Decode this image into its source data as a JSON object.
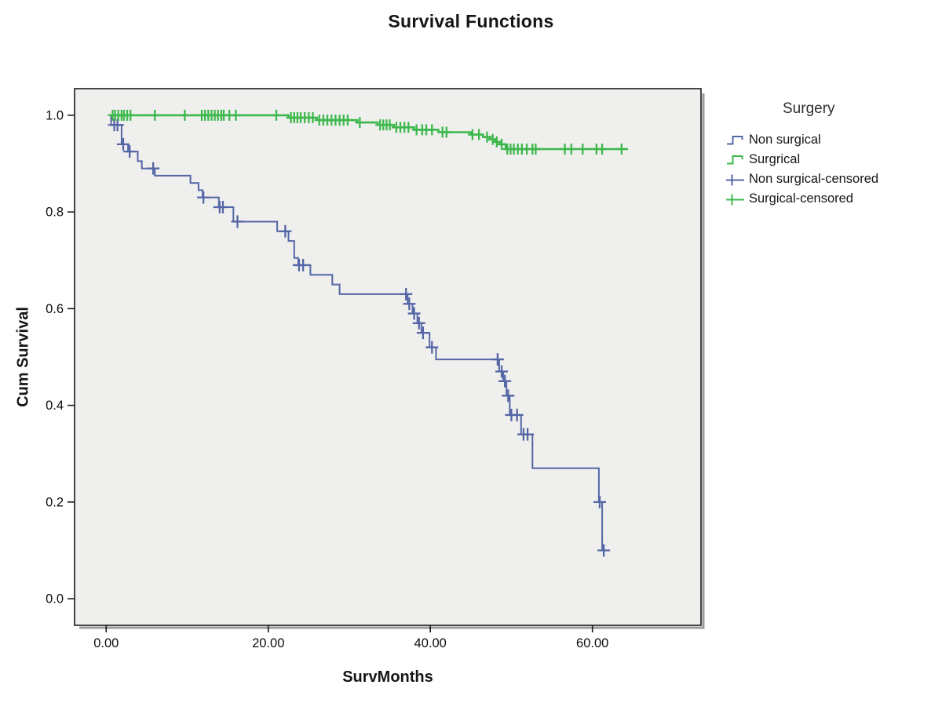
{
  "chart_data": {
    "type": "line",
    "subtype": "kaplan-meier-step",
    "title": "Survival Functions",
    "xlabel": "SurvMonths",
    "ylabel": "Cum Survival",
    "xlim": [
      -3.9,
      73.4
    ],
    "ylim": [
      -0.055,
      1.055
    ],
    "grid": false,
    "legend_position": "right",
    "plot_bg": "#EFEFED",
    "border_color": "#1a1a1a",
    "x_ticks": [
      {
        "v": 0,
        "label": "0.00"
      },
      {
        "v": 20,
        "label": "20.00"
      },
      {
        "v": 40,
        "label": "40.00"
      },
      {
        "v": 60,
        "label": "60.00"
      }
    ],
    "y_ticks": [
      {
        "v": 0.0,
        "label": "0.0"
      },
      {
        "v": 0.2,
        "label": "0.2"
      },
      {
        "v": 0.4,
        "label": "0.4"
      },
      {
        "v": 0.6,
        "label": "0.6"
      },
      {
        "v": 0.8,
        "label": "0.8"
      },
      {
        "v": 1.0,
        "label": "1.0"
      }
    ],
    "series": [
      {
        "name": "Non surgical",
        "color": "#5566A6",
        "line_width": 2,
        "end_time": 61.6,
        "steps": [
          [
            0.3,
            1.0
          ],
          [
            0.6,
            0.98
          ],
          [
            1.9,
            0.94
          ],
          [
            2.7,
            0.925
          ],
          [
            3.9,
            0.905
          ],
          [
            4.4,
            0.89
          ],
          [
            6.0,
            0.875
          ],
          [
            10.4,
            0.86
          ],
          [
            11.4,
            0.845
          ],
          [
            11.9,
            0.83
          ],
          [
            13.9,
            0.81
          ],
          [
            15.7,
            0.78
          ],
          [
            21.1,
            0.76
          ],
          [
            22.5,
            0.74
          ],
          [
            23.2,
            0.705
          ],
          [
            23.7,
            0.69
          ],
          [
            25.2,
            0.67
          ],
          [
            27.9,
            0.65
          ],
          [
            28.8,
            0.63
          ],
          [
            37.2,
            0.61
          ],
          [
            37.8,
            0.59
          ],
          [
            38.4,
            0.57
          ],
          [
            38.9,
            0.55
          ],
          [
            39.9,
            0.52
          ],
          [
            40.7,
            0.495
          ],
          [
            48.5,
            0.47
          ],
          [
            49.0,
            0.45
          ],
          [
            49.4,
            0.42
          ],
          [
            49.8,
            0.38
          ],
          [
            51.2,
            0.34
          ],
          [
            52.6,
            0.27
          ],
          [
            60.8,
            0.2
          ],
          [
            61.2,
            0.1
          ]
        ],
        "censor_times": [
          1.0,
          1.4,
          2.1,
          2.9,
          5.8,
          12.0,
          14.0,
          14.4,
          16.2,
          22.1,
          23.8,
          24.3,
          37.0,
          37.4,
          38.0,
          38.6,
          39.1,
          40.2,
          48.3,
          48.8,
          49.2,
          49.6,
          50.0,
          50.7,
          51.5,
          52.0,
          60.9,
          61.4
        ]
      },
      {
        "name": "Surgical",
        "color": "#3DB84C",
        "line_width": 2.6,
        "end_time": 64.4,
        "steps": [
          [
            0.5,
            1.0
          ],
          [
            22.5,
            0.995
          ],
          [
            26.0,
            0.99
          ],
          [
            31.0,
            0.985
          ],
          [
            33.5,
            0.98
          ],
          [
            35.5,
            0.975
          ],
          [
            38.0,
            0.97
          ],
          [
            41.0,
            0.965
          ],
          [
            45.0,
            0.96
          ],
          [
            46.5,
            0.955
          ],
          [
            47.3,
            0.95
          ],
          [
            48.0,
            0.945
          ],
          [
            48.6,
            0.94
          ],
          [
            49.3,
            0.93
          ]
        ],
        "censor_times": [
          0.8,
          1.1,
          1.5,
          1.9,
          2.2,
          2.6,
          3.0,
          6.0,
          9.7,
          11.8,
          12.2,
          12.6,
          13.0,
          13.4,
          13.8,
          14.2,
          14.5,
          15.2,
          16.0,
          21.0,
          22.8,
          23.2,
          23.6,
          24.0,
          24.5,
          25.0,
          25.5,
          26.3,
          26.8,
          27.3,
          27.8,
          28.3,
          28.8,
          29.3,
          29.8,
          31.3,
          33.8,
          34.2,
          34.6,
          35.0,
          35.8,
          36.3,
          36.8,
          37.3,
          38.3,
          39.0,
          39.5,
          40.2,
          41.5,
          42.0,
          45.2,
          46.0,
          47.0,
          47.7,
          48.2,
          48.8,
          49.5,
          49.9,
          50.3,
          50.8,
          51.3,
          51.9,
          52.6,
          53.0,
          56.6,
          57.4,
          58.8,
          60.5,
          61.2,
          63.6
        ]
      }
    ]
  },
  "legend": {
    "title": "Surgery",
    "items": [
      {
        "label": "Non surgical",
        "symbol": "step",
        "color": "#5566A6"
      },
      {
        "label": "Surgrical",
        "symbol": "step",
        "color": "#3DB84C"
      },
      {
        "label": "Non surgical-censored",
        "symbol": "censor",
        "color": "#5566A6"
      },
      {
        "label": "Surgical-censored",
        "symbol": "censor",
        "color": "#3DB84C"
      }
    ]
  }
}
